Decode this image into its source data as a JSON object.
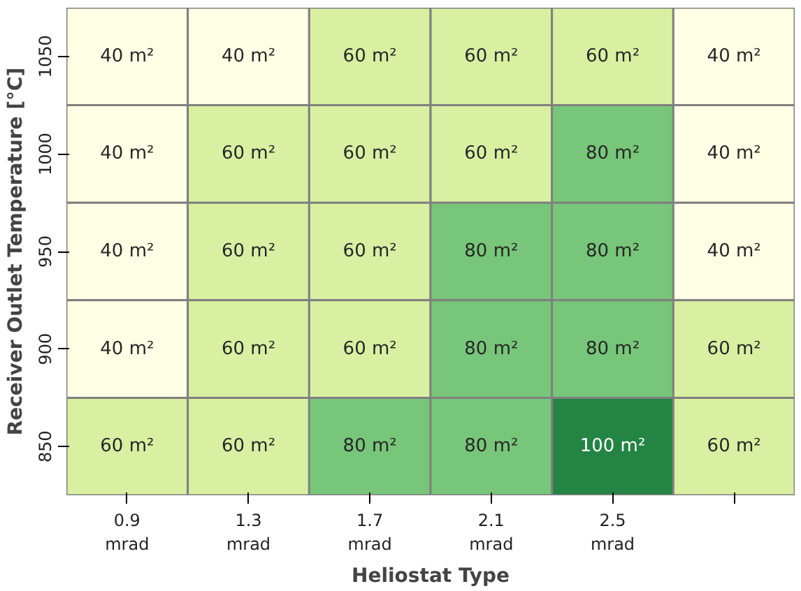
{
  "chart_data": {
    "type": "heatmap",
    "xlabel": "Heliostat Type",
    "ylabel": "Receiver Outlet Temperature [°C]",
    "categories": [
      "0.9\nmrad",
      "1.3\nmrad",
      "1.7\nmrad",
      "2.1\nmrad",
      "2.5\nmrad",
      null
    ],
    "y_categories": [
      "1050",
      "1000",
      "950",
      "900",
      "850"
    ],
    "cells": [
      [
        40,
        40,
        60,
        60,
        60,
        40
      ],
      [
        40,
        60,
        60,
        60,
        80,
        40
      ],
      [
        40,
        60,
        60,
        80,
        80,
        40
      ],
      [
        40,
        60,
        60,
        80,
        80,
        60
      ],
      [
        60,
        60,
        80,
        80,
        100,
        60
      ]
    ],
    "cell_labels": [
      [
        "40 m²",
        "40 m²",
        "60 m²",
        "60 m²",
        "60 m²",
        "40 m²"
      ],
      [
        "40 m²",
        "60 m²",
        "60 m²",
        "60 m²",
        "80 m²",
        "40 m²"
      ],
      [
        "40 m²",
        "60 m²",
        "60 m²",
        "80 m²",
        "80 m²",
        "40 m²"
      ],
      [
        "40 m²",
        "60 m²",
        "60 m²",
        "80 m²",
        "80 m²",
        "60 m²"
      ],
      [
        "60 m²",
        "60 m²",
        "80 m²",
        "80 m²",
        "100 m²",
        "60 m²"
      ]
    ]
  }
}
